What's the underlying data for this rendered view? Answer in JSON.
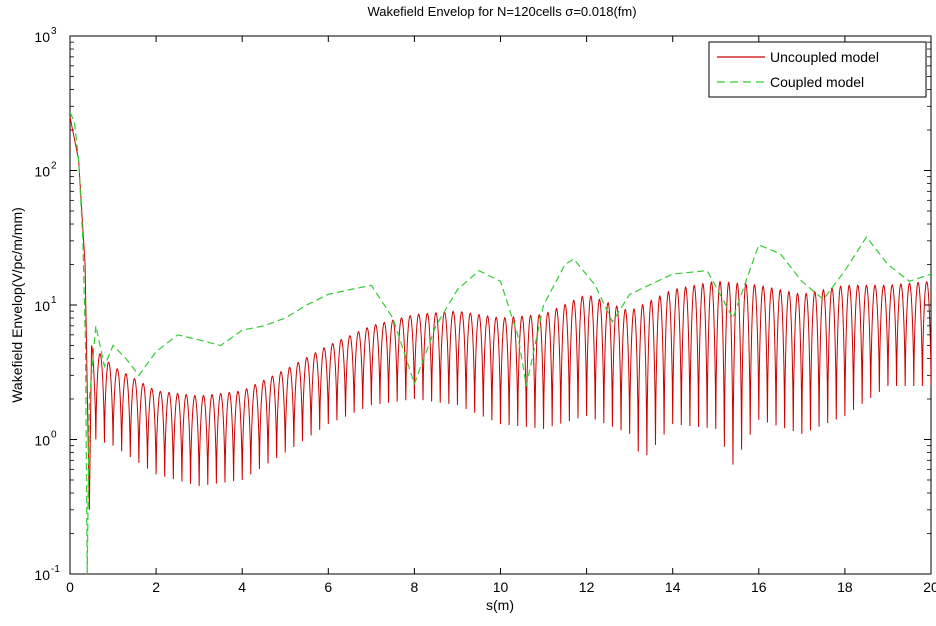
{
  "chart_data": {
    "type": "line",
    "title": "Wakefield Envelop for N=120cells σ=0.018(fm)",
    "xlabel": "s(m)",
    "ylabel": "Wakefield Envelop(V/pc/m/mm)",
    "xlim": [
      0,
      20
    ],
    "ylim": [
      0.1,
      1000
    ],
    "yscale": "log",
    "x_ticks": [
      "0",
      "2",
      "4",
      "6",
      "8",
      "10",
      "12",
      "14",
      "16",
      "18",
      "20"
    ],
    "y_ticks": [
      {
        "base": "10",
        "exp": "-1",
        "value": 0.1
      },
      {
        "base": "10",
        "exp": "0",
        "value": 1
      },
      {
        "base": "10",
        "exp": "1",
        "value": 10
      },
      {
        "base": "10",
        "exp": "2",
        "value": 100
      },
      {
        "base": "10",
        "exp": "3",
        "value": 1000
      }
    ],
    "legend_position": "top-right",
    "series": [
      {
        "name": "Uncoupled model",
        "color": "#cc0000",
        "style": "solid",
        "peaks": [
          [
            0.0,
            250
          ],
          [
            0.2,
            120
          ],
          [
            0.35,
            20
          ],
          [
            0.5,
            5
          ],
          [
            1.0,
            3.5
          ],
          [
            2.0,
            2.3
          ],
          [
            3.0,
            2.1
          ],
          [
            4.0,
            2.3
          ],
          [
            5.0,
            3.3
          ],
          [
            6.0,
            5.0
          ],
          [
            7.0,
            7.0
          ],
          [
            8.0,
            8.5
          ],
          [
            9.0,
            9.0
          ],
          [
            10.0,
            8.0
          ],
          [
            11.0,
            8.5
          ],
          [
            12.0,
            12.0
          ],
          [
            13.0,
            9.0
          ],
          [
            14.0,
            13.0
          ],
          [
            15.0,
            15.0
          ],
          [
            16.0,
            14.0
          ],
          [
            17.0,
            12.0
          ],
          [
            18.0,
            14.0
          ],
          [
            19.0,
            14.0
          ],
          [
            20.0,
            15.0
          ]
        ],
        "troughs": [
          [
            0.45,
            0.3
          ],
          [
            0.6,
            1.0
          ],
          [
            1.0,
            0.9
          ],
          [
            2.0,
            0.55
          ],
          [
            3.0,
            0.45
          ],
          [
            4.0,
            0.5
          ],
          [
            5.0,
            0.8
          ],
          [
            6.0,
            1.3
          ],
          [
            7.0,
            1.8
          ],
          [
            8.0,
            2.0
          ],
          [
            9.0,
            1.8
          ],
          [
            10.0,
            1.3
          ],
          [
            11.0,
            1.2
          ],
          [
            12.0,
            1.5
          ],
          [
            13.0,
            1.1
          ],
          [
            13.3,
            0.7
          ],
          [
            14.0,
            1.3
          ],
          [
            15.0,
            1.2
          ],
          [
            15.4,
            0.65
          ],
          [
            16.0,
            1.4
          ],
          [
            17.0,
            1.1
          ],
          [
            18.0,
            1.5
          ],
          [
            19.0,
            2.5
          ],
          [
            20.0,
            2.5
          ]
        ],
        "oscillation_period": 0.2
      },
      {
        "name": "Coupled model",
        "color": "#33cc33",
        "style": "dashed",
        "points": [
          [
            0.0,
            270
          ],
          [
            0.1,
            230
          ],
          [
            0.2,
            120
          ],
          [
            0.3,
            30
          ],
          [
            0.36,
            5
          ],
          [
            0.4,
            0.1
          ],
          [
            0.45,
            2
          ],
          [
            0.6,
            7
          ],
          [
            0.8,
            3.5
          ],
          [
            1.0,
            5
          ],
          [
            1.3,
            4
          ],
          [
            1.6,
            3
          ],
          [
            2.0,
            4.5
          ],
          [
            2.5,
            6
          ],
          [
            3.0,
            5.5
          ],
          [
            3.5,
            5
          ],
          [
            4.0,
            6.5
          ],
          [
            4.5,
            7
          ],
          [
            5.0,
            8
          ],
          [
            5.5,
            10
          ],
          [
            6.0,
            12
          ],
          [
            6.5,
            13
          ],
          [
            7.0,
            14
          ],
          [
            7.5,
            8
          ],
          [
            8.0,
            2.6
          ],
          [
            8.5,
            7
          ],
          [
            9.0,
            13
          ],
          [
            9.5,
            18
          ],
          [
            10.0,
            15
          ],
          [
            10.4,
            6
          ],
          [
            10.6,
            2.5
          ],
          [
            11.0,
            10
          ],
          [
            11.5,
            20
          ],
          [
            11.7,
            22
          ],
          [
            12.2,
            14
          ],
          [
            12.6,
            7.5
          ],
          [
            13.0,
            12
          ],
          [
            14.0,
            17
          ],
          [
            14.8,
            18
          ],
          [
            15.4,
            8
          ],
          [
            16.0,
            28
          ],
          [
            16.5,
            24
          ],
          [
            17.0,
            15
          ],
          [
            17.5,
            11
          ],
          [
            18.0,
            18
          ],
          [
            18.5,
            32
          ],
          [
            19.0,
            20
          ],
          [
            19.5,
            15
          ],
          [
            20.0,
            17
          ]
        ]
      }
    ]
  }
}
